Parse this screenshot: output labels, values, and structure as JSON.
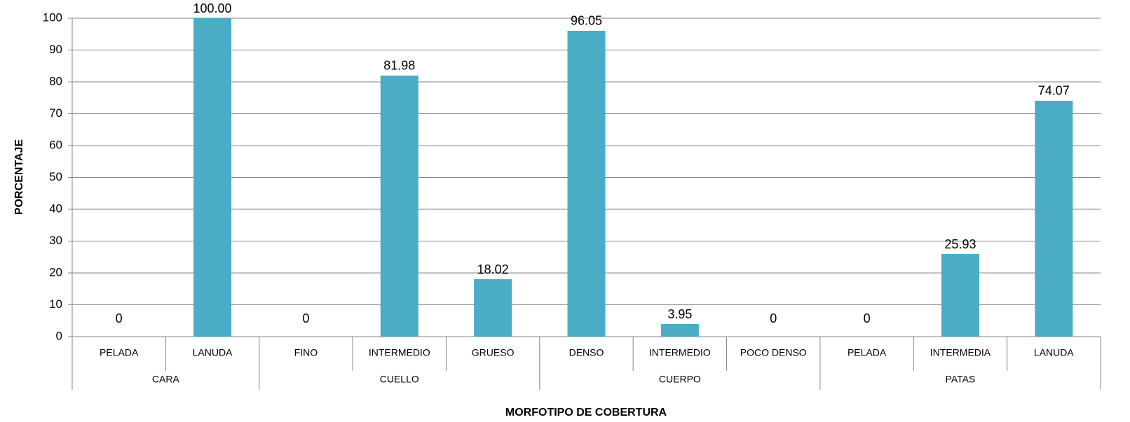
{
  "chart_data": {
    "type": "bar",
    "x_label": "MORFOTIPO DE COBERTURA",
    "y_label": "PORCENTAJE",
    "categories": [
      "PELADA",
      "LANUDA",
      "FINO",
      "INTERMEDIO",
      "GRUESO",
      "DENSO",
      "INTERMEDIO",
      "POCO DENSO",
      "PELADA",
      "INTERMEDIA",
      "LANUDA"
    ],
    "category_groups": [
      {
        "name": "CARA",
        "span": 2
      },
      {
        "name": "CUELLO",
        "span": 3
      },
      {
        "name": "CUERPO",
        "span": 3
      },
      {
        "name": "PATAS",
        "span": 3
      }
    ],
    "values": [
      0,
      100,
      0,
      81.98,
      18.02,
      96.05,
      3.95,
      0,
      0,
      25.93,
      74.07
    ],
    "value_labels": [
      "0",
      "100.00",
      "0",
      "81.98",
      "18.02",
      "96.05",
      "3.95",
      "0",
      "0",
      "25.93",
      "74.07"
    ],
    "color": "#4bacc6",
    "ylim": [
      0,
      100
    ],
    "yticks": [
      0,
      10,
      20,
      30,
      40,
      50,
      60,
      70,
      80,
      90,
      100
    ],
    "grid": true
  }
}
